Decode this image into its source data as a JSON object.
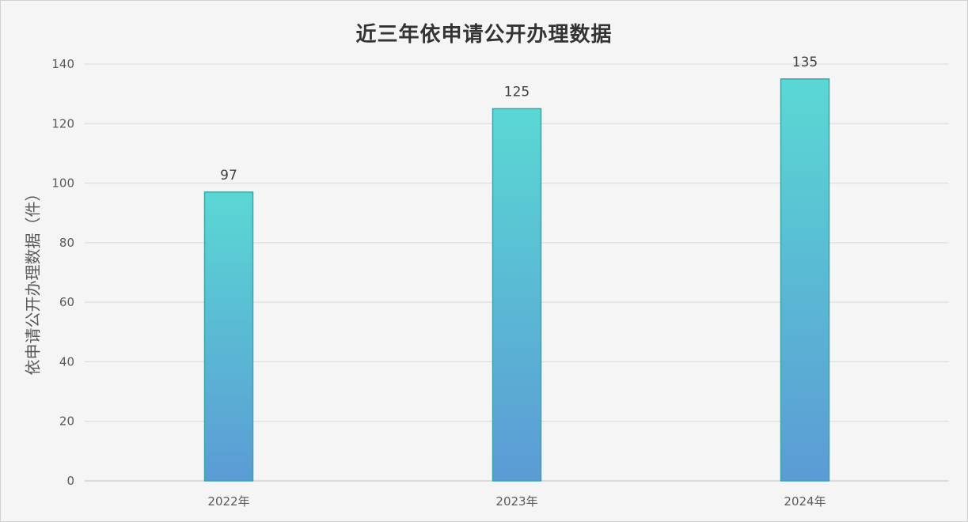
{
  "chart_data": {
    "type": "bar",
    "title": "近三年依申请公开办理数据",
    "ylabel": "依申请公开办理数据（件）",
    "xlabel": "",
    "categories": [
      "2022年",
      "2023年",
      "2024年"
    ],
    "values": [
      97,
      125,
      135
    ],
    "ylim": [
      0,
      140
    ],
    "yticks": [
      0,
      20,
      40,
      60,
      80,
      100,
      120,
      140
    ],
    "grid": true,
    "legend": "none",
    "colors": {
      "bar_top": "#5ad8d4",
      "bar_bottom": "#5b9bd5",
      "bar_border": "#3aa6a6",
      "gridline": "#d9d9d9",
      "background": "#f5f5f5"
    }
  }
}
